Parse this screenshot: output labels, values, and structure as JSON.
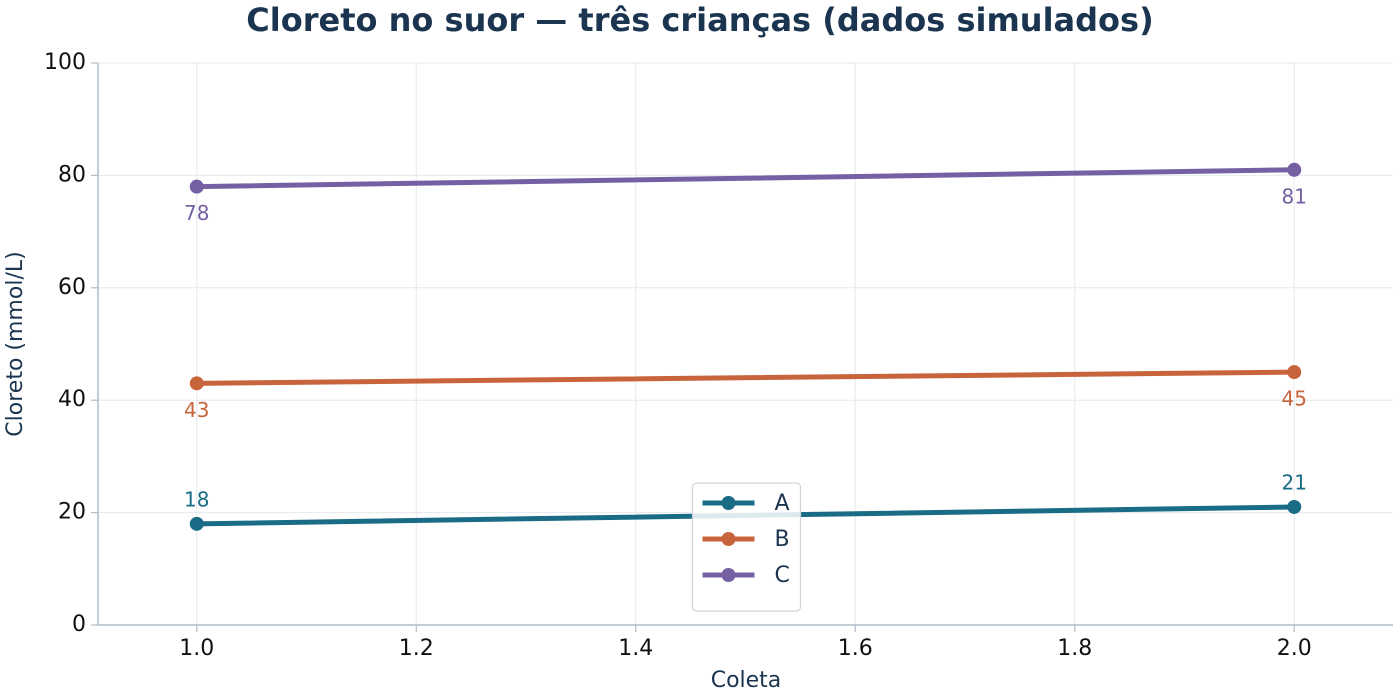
{
  "chart_data": {
    "type": "line",
    "title": "Cloreto no suor — três crianças (dados simulados)",
    "x_label": "Coleta",
    "y_label": "Cloreto (mmol/L)",
    "x": [
      1,
      2
    ],
    "series": [
      {
        "name": "A",
        "color": "#1a6b85",
        "values": [
          18,
          21
        ]
      },
      {
        "name": "B",
        "color": "#c8643c",
        "values": [
          43,
          45
        ]
      },
      {
        "name": "C",
        "color": "#7560a3",
        "values": [
          78,
          81
        ]
      }
    ],
    "xlim": [
      0.91,
      2.09
    ],
    "xticks": [
      {
        "value": 1,
        "label": "1.0"
      },
      1.2,
      1.4,
      1.6,
      1.8,
      {
        "value": 2,
        "label": "2.0"
      }
    ],
    "ylim": [
      0,
      100
    ],
    "yticks": [
      0,
      20,
      40,
      60,
      80,
      100
    ],
    "grid": true,
    "legend": "lower center"
  }
}
